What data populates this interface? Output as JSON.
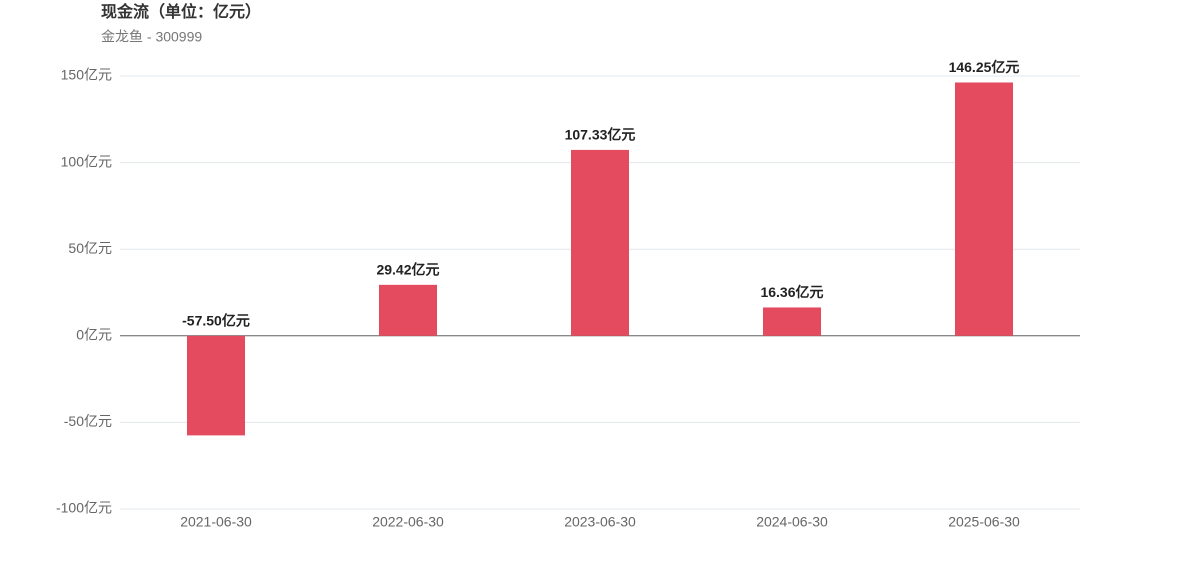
{
  "chart_data": {
    "type": "bar",
    "title": "现金流（单位：亿元）",
    "subtitle": "金龙鱼 - 300999",
    "categories": [
      "2021-06-30",
      "2022-06-30",
      "2023-06-30",
      "2024-06-30",
      "2025-06-30"
    ],
    "values": [
      -57.5,
      29.42,
      107.33,
      16.36,
      146.25
    ],
    "value_labels": [
      "-57.50亿元",
      "29.42亿元",
      "107.33亿元",
      "16.36亿元",
      "146.25亿元"
    ],
    "color": "#e54b5e",
    "ylim": [
      -100,
      150
    ],
    "yticks": [
      {
        "value": -100,
        "label": "-100亿元"
      },
      {
        "value": -50,
        "label": "-50亿元"
      },
      {
        "value": 0,
        "label": "0亿元"
      },
      {
        "value": 50,
        "label": "50亿元"
      },
      {
        "value": 100,
        "label": "100亿元"
      },
      {
        "value": 150,
        "label": "150亿元"
      }
    ],
    "grid": true
  }
}
